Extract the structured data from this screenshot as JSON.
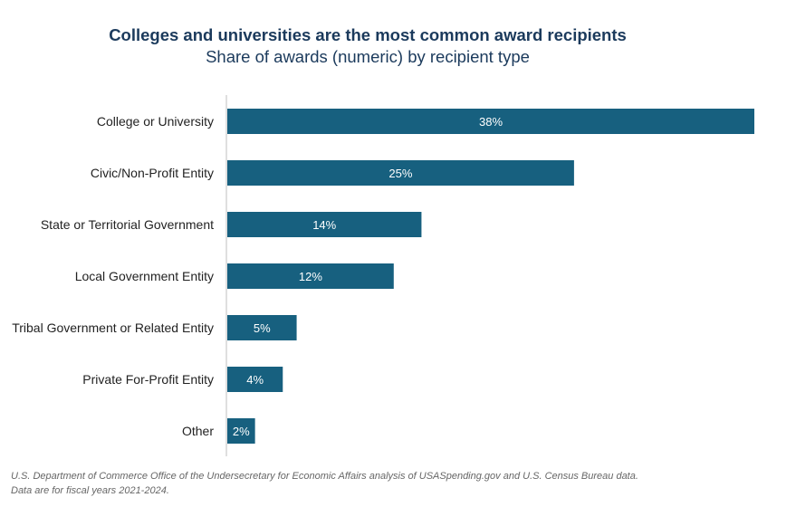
{
  "header": {
    "title": "Colleges and universities are the most common award recipients",
    "subtitle": "Share of awards (numeric) by recipient type"
  },
  "footer": {
    "source_line1": "U.S. Department of Commerce Office of the Undersecretary for Economic Affairs analysis of USASpending.gov and U.S. Census Bureau data.",
    "source_line2": "Data are for fiscal years 2021-2024."
  },
  "chart_data": {
    "type": "bar",
    "orientation": "horizontal",
    "title": "Colleges and universities are the most common award recipients",
    "subtitle": "Share of awards (numeric) by recipient type",
    "categories": [
      "College or University",
      "Civic/Non-Profit Entity",
      "State or Territorial Government",
      "Local Government Entity",
      "Tribal Government or Related Entity",
      "Private For-Profit Entity",
      "Other"
    ],
    "values": [
      38,
      25,
      14,
      12,
      5,
      4,
      2
    ],
    "value_labels": [
      "38%",
      "25%",
      "14%",
      "12%",
      "5%",
      "4%",
      "2%"
    ],
    "unit": "%",
    "xlim": [
      0,
      38
    ],
    "grid": false,
    "legend": "none",
    "bar_color": "#17607f"
  }
}
